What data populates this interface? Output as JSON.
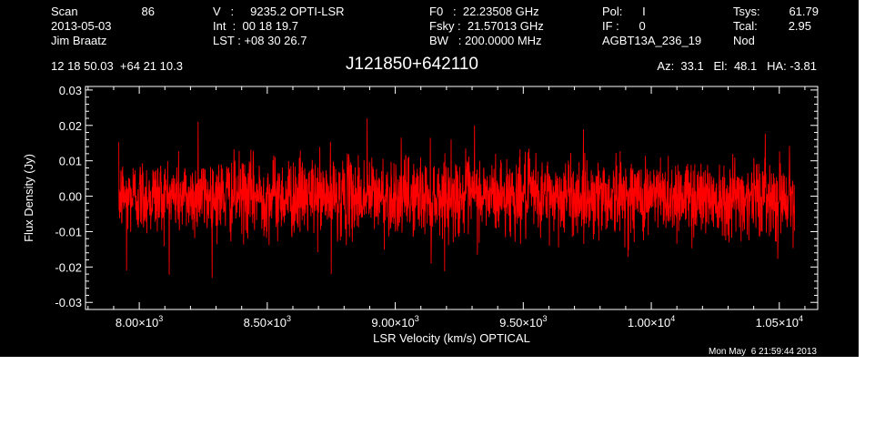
{
  "header": {
    "col1": {
      "scan_label": "Scan",
      "scan_value": "86",
      "date": "2013-05-03",
      "observer": "Jim Braatz"
    },
    "col2": {
      "v_row": "V   :     9235.2 OPTI-LSR",
      "int_row": "Int  :  00 18 19.7",
      "lst_row": "LST : +08 30 26.7"
    },
    "col3": {
      "f0_row": "F0   :  22.23508 GHz",
      "fsky_row": "Fsky :  21.57013 GHz",
      "bw_row": "BW   : 200.0000 MHz"
    },
    "col4": {
      "pol_row": "Pol:      I",
      "if_row": "IF :      0",
      "project": "AGBT13A_236_19"
    },
    "col5": {
      "tsys_label": "Tsys:",
      "tsys_value": "61.79",
      "tcal_label": "Tcal:",
      "tcal_value": "2.95",
      "mode": "Nod"
    },
    "coords": "12 18 50.03  +64 21 10.3",
    "source": "J121850+642110",
    "pointing": "Az:  33.1   El:  48.1   HA: -3.81"
  },
  "timestamp": "Mon May  6 21:59:44 2013",
  "colors": {
    "background": "#000000",
    "axes": "#ffffff",
    "trace": "#ff0000"
  },
  "chart_data": {
    "type": "line",
    "xlabel": "LSR Velocity (km/s) OPTICAL",
    "ylabel": "Flux Density (Jy)",
    "xlim": [
      7790,
      10650
    ],
    "ylim": [
      -0.032,
      0.031
    ],
    "x_ticks": [
      {
        "value": 8000,
        "mantissa": "8.00",
        "exponent": "3"
      },
      {
        "value": 8500,
        "mantissa": "8.50",
        "exponent": "3"
      },
      {
        "value": 9000,
        "mantissa": "9.00",
        "exponent": "3"
      },
      {
        "value": 9500,
        "mantissa": "9.50",
        "exponent": "3"
      },
      {
        "value": 10000,
        "mantissa": "1.00",
        "exponent": "4"
      },
      {
        "value": 10500,
        "mantissa": "1.05",
        "exponent": "4"
      }
    ],
    "y_ticks": [
      {
        "value": 0.03,
        "label": "0.03"
      },
      {
        "value": 0.02,
        "label": "0.02"
      },
      {
        "value": 0.01,
        "label": "0.01"
      },
      {
        "value": 0.0,
        "label": "0.00"
      },
      {
        "value": -0.01,
        "label": "-0.01"
      },
      {
        "value": -0.02,
        "label": "-0.02"
      },
      {
        "value": -0.03,
        "label": "-0.03"
      }
    ],
    "grid": false,
    "legend": "none",
    "series": [
      {
        "x_range": [
          7920,
          10560
        ],
        "y_mean": 0.0,
        "noise_rms": 0.0055,
        "peaks": [
          {
            "x": 8230,
            "y": 0.021
          },
          {
            "x": 8890,
            "y": 0.022
          },
          {
            "x": 9310,
            "y": 0.02
          },
          {
            "x": 8750,
            "y": -0.022
          },
          {
            "x": 7950,
            "y": -0.021
          },
          {
            "x": 9140,
            "y": -0.019
          }
        ]
      }
    ]
  }
}
